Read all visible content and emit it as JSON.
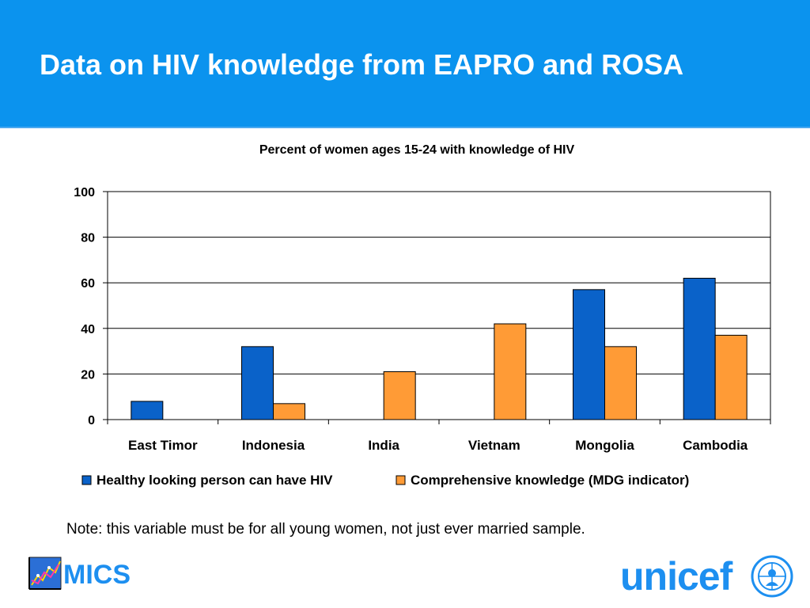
{
  "slide": {
    "title": "Data on HIV knowledge from EAPRO and ROSA",
    "note": "Note: this variable must be for all young women, not just ever married sample.",
    "logos": {
      "left": "MICS",
      "right": "unicef"
    }
  },
  "colors": {
    "header_bg": "#0b93ee",
    "series1": "#0a62c9",
    "series2": "#ff9b36",
    "logo_blue": "#1d8ff0"
  },
  "chart_data": {
    "type": "bar",
    "title": "Percent of women ages 15-24 with knowledge of HIV",
    "categories": [
      "East Timor",
      "Indonesia",
      "India",
      "Vietnam",
      "Mongolia",
      "Cambodia"
    ],
    "series": [
      {
        "name": "Healthy looking person can have HIV",
        "values": [
          8,
          32,
          null,
          null,
          57,
          62
        ]
      },
      {
        "name": "Comprehensive knowledge (MDG indicator)",
        "values": [
          null,
          7,
          21,
          42,
          32,
          37
        ]
      }
    ],
    "ylim": [
      0,
      100
    ],
    "yticks": [
      0,
      20,
      40,
      60,
      80,
      100
    ],
    "grid": true,
    "legend": "bottom"
  }
}
